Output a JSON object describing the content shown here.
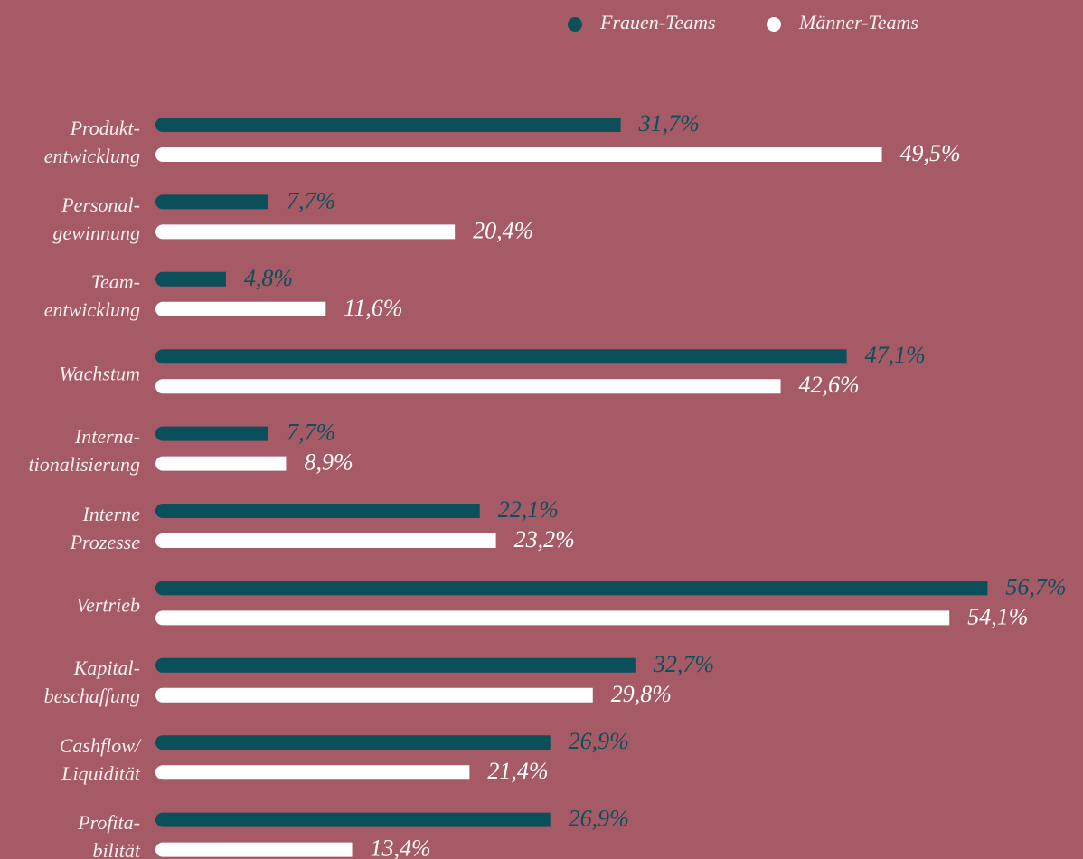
{
  "chart_data": {
    "type": "bar",
    "orientation": "horizontal",
    "categories": [
      "Produkt-\nentwicklung",
      "Personal-\ngewinnung",
      "Team-\nentwicklung",
      "Wachstum",
      "Interna-\ntionalisierung",
      "Interne\nProzesse",
      "Vertrieb",
      "Kapital-\nbeschaffung",
      "Cashflow/\nLiquidität",
      "Profita-\nbilität"
    ],
    "series": [
      {
        "name": "Frauen-Teams",
        "color": "#0b4f5b",
        "values": [
          31.7,
          7.7,
          4.8,
          47.1,
          7.7,
          22.1,
          56.7,
          32.7,
          26.9,
          26.9
        ],
        "value_labels": [
          "31,7%",
          "7,7%",
          "4,8%",
          "47,1%",
          "7,7%",
          "22,1%",
          "56,7%",
          "32,7%",
          "26,9%",
          "26,9%"
        ]
      },
      {
        "name": "Männer-Teams",
        "color": "#ffffff",
        "values": [
          49.5,
          20.4,
          11.6,
          42.6,
          8.9,
          23.2,
          54.1,
          29.8,
          21.4,
          13.4
        ],
        "value_labels": [
          "49,5%",
          "20,4%",
          "11,6%",
          "42,6%",
          "8,9%",
          "23,2%",
          "54,1%",
          "29,8%",
          "21,4%",
          "13,4%"
        ]
      }
    ],
    "xlim": [
      0,
      60
    ],
    "legend": "top-right"
  }
}
